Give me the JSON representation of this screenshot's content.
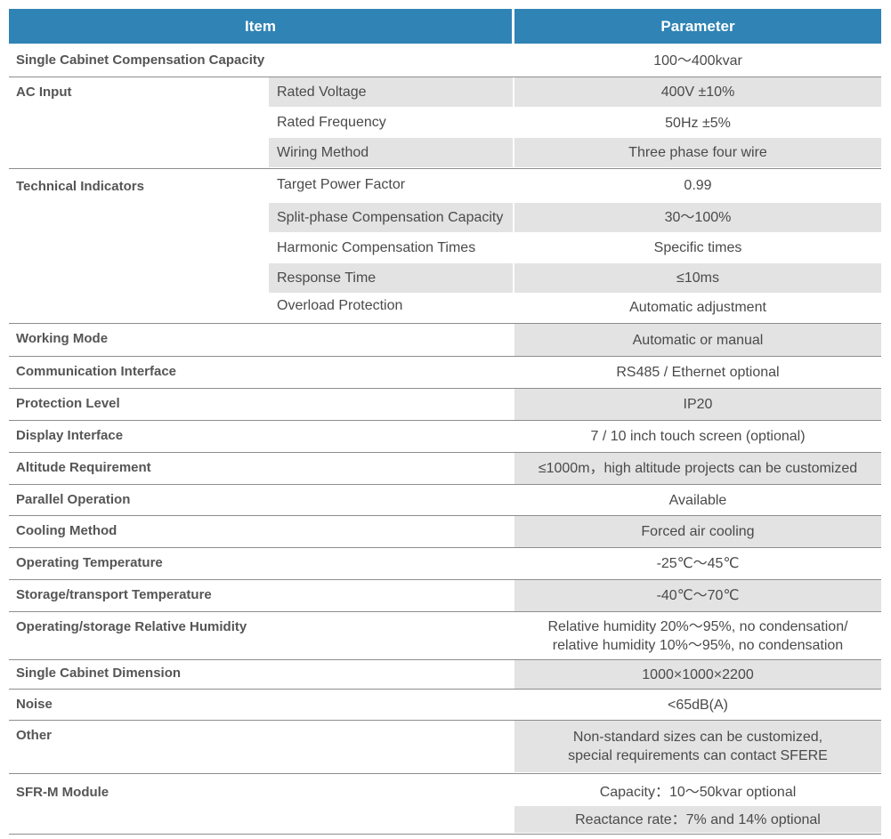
{
  "header": {
    "item": "Item",
    "parameter": "Parameter"
  },
  "rows": {
    "r1": {
      "item": "Single Cabinet Compensation Capacity",
      "value": "100～400kvar"
    },
    "r2": {
      "item": "AC Input",
      "subs": [
        "Rated Voltage",
        "Rated Frequency",
        "Wiring Method"
      ],
      "values": [
        "400V ±10%",
        "50Hz ±5%",
        "Three phase four wire"
      ]
    },
    "r3": {
      "item": "Technical Indicators",
      "subs": [
        "Target Power Factor",
        "Split-phase Compensation Capacity",
        "Harmonic Compensation Times",
        "Response Time",
        "Overload Protection"
      ],
      "values": [
        "0.99",
        "30～100%",
        "Specific times",
        "≤10ms",
        "Automatic adjustment"
      ]
    },
    "r4": {
      "item": "Working Mode",
      "value": "Automatic or manual"
    },
    "r5": {
      "item": "Communication Interface",
      "value": "RS485 / Ethernet optional"
    },
    "r6": {
      "item": "Protection Level",
      "value": "IP20"
    },
    "r7": {
      "item": "Display Interface",
      "value": "7 / 10 inch touch screen (optional)"
    },
    "r8": {
      "item": "Altitude Requirement",
      "value": "≤1000m，high altitude projects can be customized"
    },
    "r9": {
      "item": "Parallel Operation",
      "value": "Available"
    },
    "r10": {
      "item": "Cooling Method",
      "value": "Forced air cooling"
    },
    "r11": {
      "item": "Operating Temperature",
      "value": "-25℃～45℃"
    },
    "r12": {
      "item": "Storage/transport Temperature",
      "value": "-40℃～70℃"
    },
    "r13": {
      "item": "Operating/storage Relative Humidity",
      "value1": "Relative humidity 20%～95%, no condensation/",
      "value2": "relative humidity 10%～95%, no condensation"
    },
    "r14": {
      "item": "Single Cabinet Dimension",
      "value": "1000×1000×2200"
    },
    "r15": {
      "item": "Noise",
      "value": "<65dB(A)"
    },
    "r16": {
      "item": "Other",
      "value1": "Non-standard sizes can be customized,",
      "value2": "special requirements can contact SFERE"
    },
    "r17": {
      "item": "SFR-M Module",
      "values": [
        "Capacity：10～50kvar optional",
        "Reactance rate：7% and 14% optional"
      ]
    }
  }
}
